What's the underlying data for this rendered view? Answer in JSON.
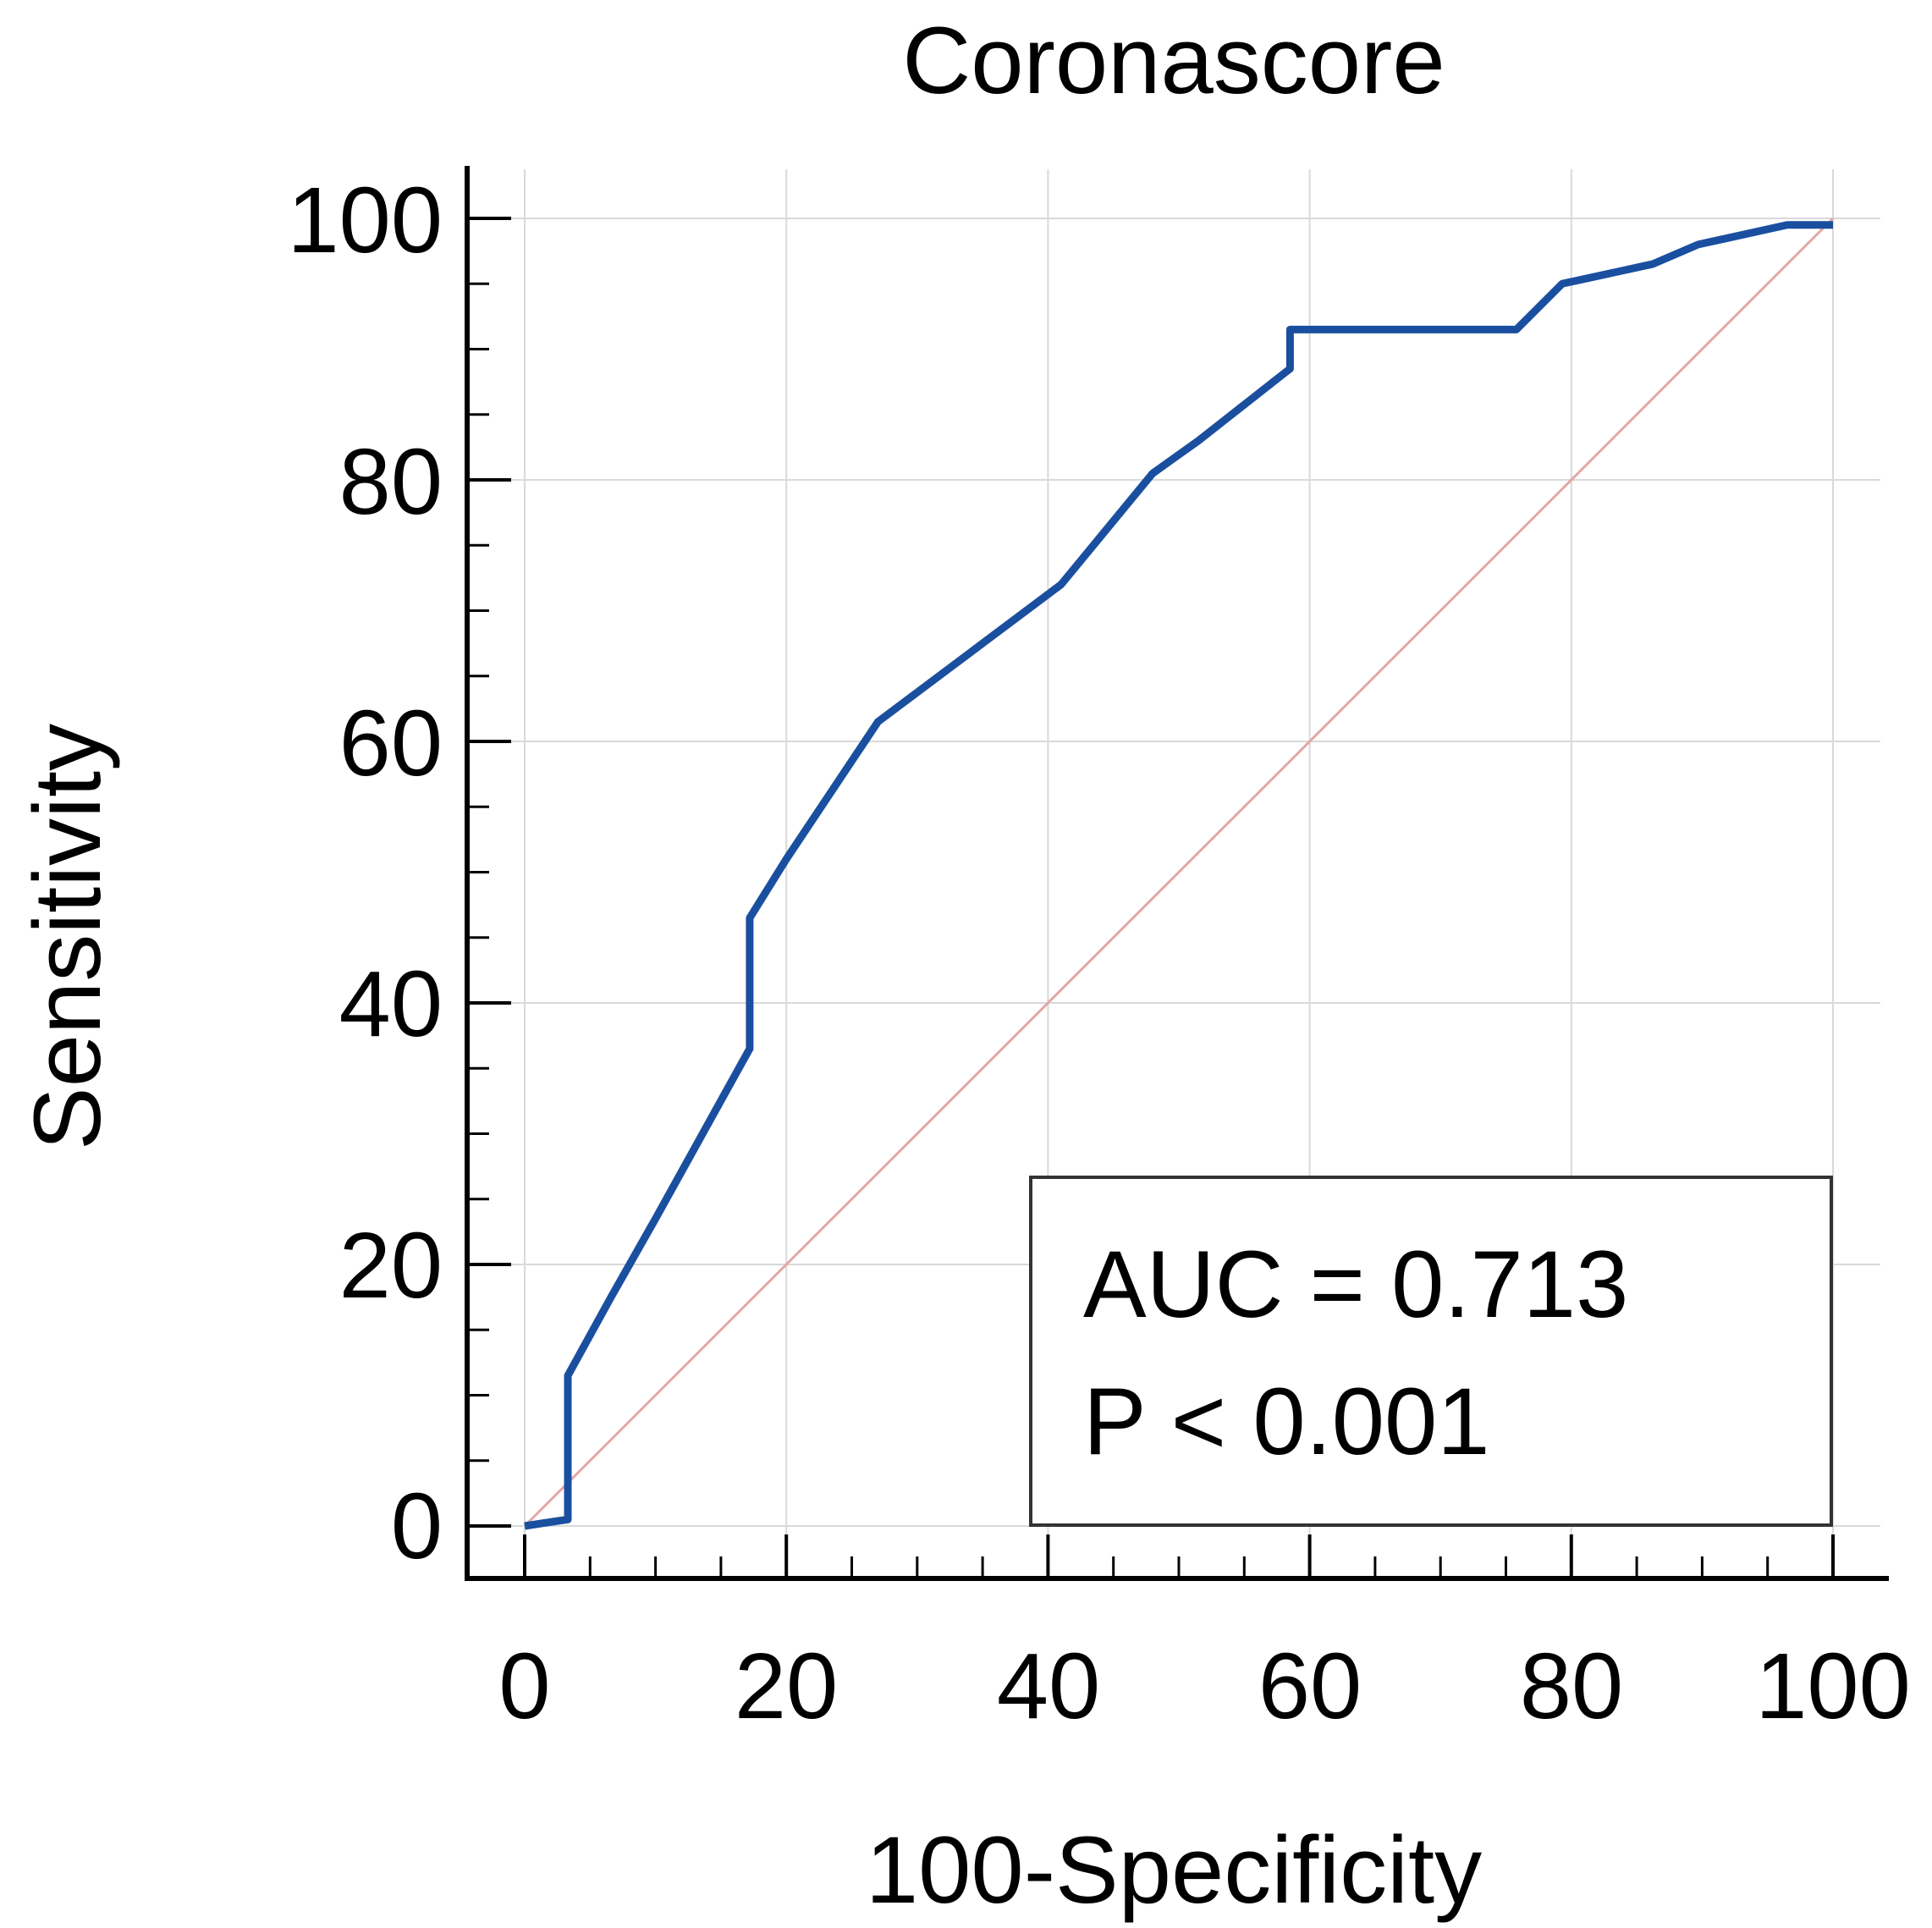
{
  "chart_data": {
    "type": "line",
    "title": "Coronascore",
    "xlabel": "100-Specificity",
    "ylabel": "Sensitivity",
    "xlim": [
      0,
      100
    ],
    "ylim": [
      0,
      100
    ],
    "x_ticks": [
      "0",
      "20",
      "40",
      "60",
      "80",
      "100"
    ],
    "y_ticks": [
      "0",
      "20",
      "40",
      "60",
      "80",
      "100"
    ],
    "grid": true,
    "series": [
      {
        "name": "ROC curve",
        "color": "#1a4fa0",
        "points": [
          [
            0,
            0
          ],
          [
            3.3,
            0.5
          ],
          [
            3.3,
            11.5
          ],
          [
            6.6,
            17.5
          ],
          [
            10,
            23.5
          ],
          [
            17.2,
            36.5
          ],
          [
            17.2,
            46.5
          ],
          [
            20,
            51
          ],
          [
            27,
            61.5
          ],
          [
            33,
            66
          ],
          [
            41,
            72
          ],
          [
            48,
            80.5
          ],
          [
            51.5,
            83
          ],
          [
            58.5,
            88.5
          ],
          [
            58.5,
            91.5
          ],
          [
            75.8,
            91.5
          ],
          [
            79.3,
            95
          ],
          [
            86.2,
            96.5
          ],
          [
            89.7,
            98
          ],
          [
            96.5,
            99.5
          ],
          [
            100,
            99.5
          ]
        ]
      },
      {
        "name": "Reference line",
        "color": "#e3a7a7",
        "points": [
          [
            0,
            0
          ],
          [
            100,
            100
          ]
        ]
      }
    ],
    "annotation": {
      "auc": "AUC = 0.713",
      "p": "P < 0.001",
      "placement": "bottom-right"
    }
  }
}
